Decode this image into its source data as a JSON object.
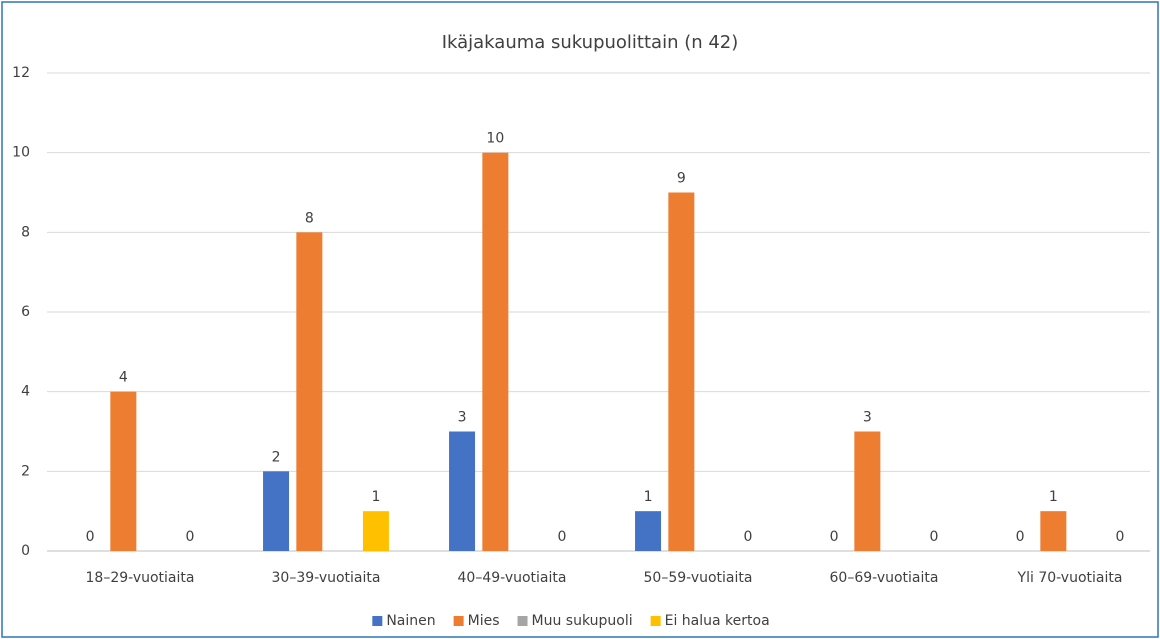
{
  "chart_data": {
    "type": "bar",
    "title": "Ikäjakauma sukupuolittain (n 42)",
    "categories": [
      "18–29-vuotiaita",
      "30–39-vuotiaita",
      "40–49-vuotiaita",
      "50–59-vuotiaita",
      "60–69-vuotiaita",
      "Yli 70-vuotiaita"
    ],
    "series": [
      {
        "name": "Nainen",
        "color": "#4472c4",
        "values": [
          0,
          2,
          3,
          1,
          0,
          0
        ],
        "data_labels": true
      },
      {
        "name": "Mies",
        "color": "#ed7d31",
        "values": [
          4,
          8,
          10,
          9,
          3,
          1
        ],
        "data_labels": true
      },
      {
        "name": "Muu sukupuoli",
        "color": "#a5a5a5",
        "values": [
          0,
          0,
          0,
          0,
          0,
          0
        ],
        "data_labels": false
      },
      {
        "name": "Ei halua kertoa",
        "color": "#ffc000",
        "values": [
          0,
          1,
          0,
          0,
          0,
          0
        ],
        "data_labels": true
      }
    ],
    "ylim": [
      0,
      12
    ],
    "yticks": [
      0,
      2,
      4,
      6,
      8,
      10,
      12
    ],
    "grid": true,
    "legend": "bottom"
  }
}
